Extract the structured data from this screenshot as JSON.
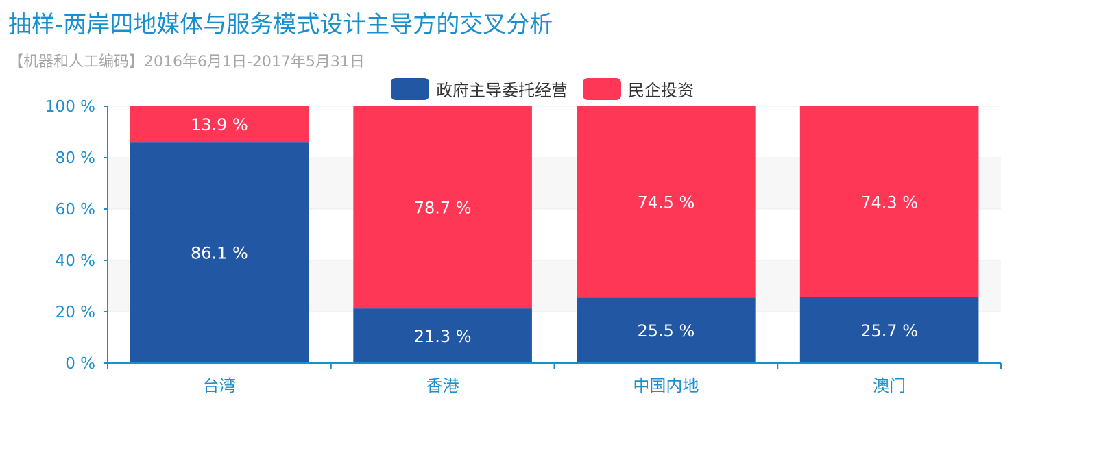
{
  "colors": {
    "accent": "#1a8fce",
    "series1": "#2258a3",
    "series2": "#ff3757"
  },
  "chart_data": {
    "type": "bar",
    "stacked": true,
    "title": "抽样-两岸四地媒体与服务模式设计主导方的交叉分析",
    "subtitle": "【机器和人工编码】2016年6月1日-2017年5月31日",
    "categories": [
      "台湾",
      "香港",
      "中国内地",
      "澳门"
    ],
    "series": [
      {
        "name": "政府主导委托经营",
        "values": [
          86.1,
          21.3,
          25.5,
          25.7
        ]
      },
      {
        "name": "民企投资",
        "values": [
          13.9,
          78.7,
          74.5,
          74.3
        ]
      }
    ],
    "ylim": [
      0,
      100
    ],
    "yticks": [
      "0 %",
      "20 %",
      "40 %",
      "60 %",
      "80 %",
      "100 %"
    ],
    "value_suffix": " %",
    "legend_position": "top-center",
    "grid": "horizontal-bands"
  }
}
